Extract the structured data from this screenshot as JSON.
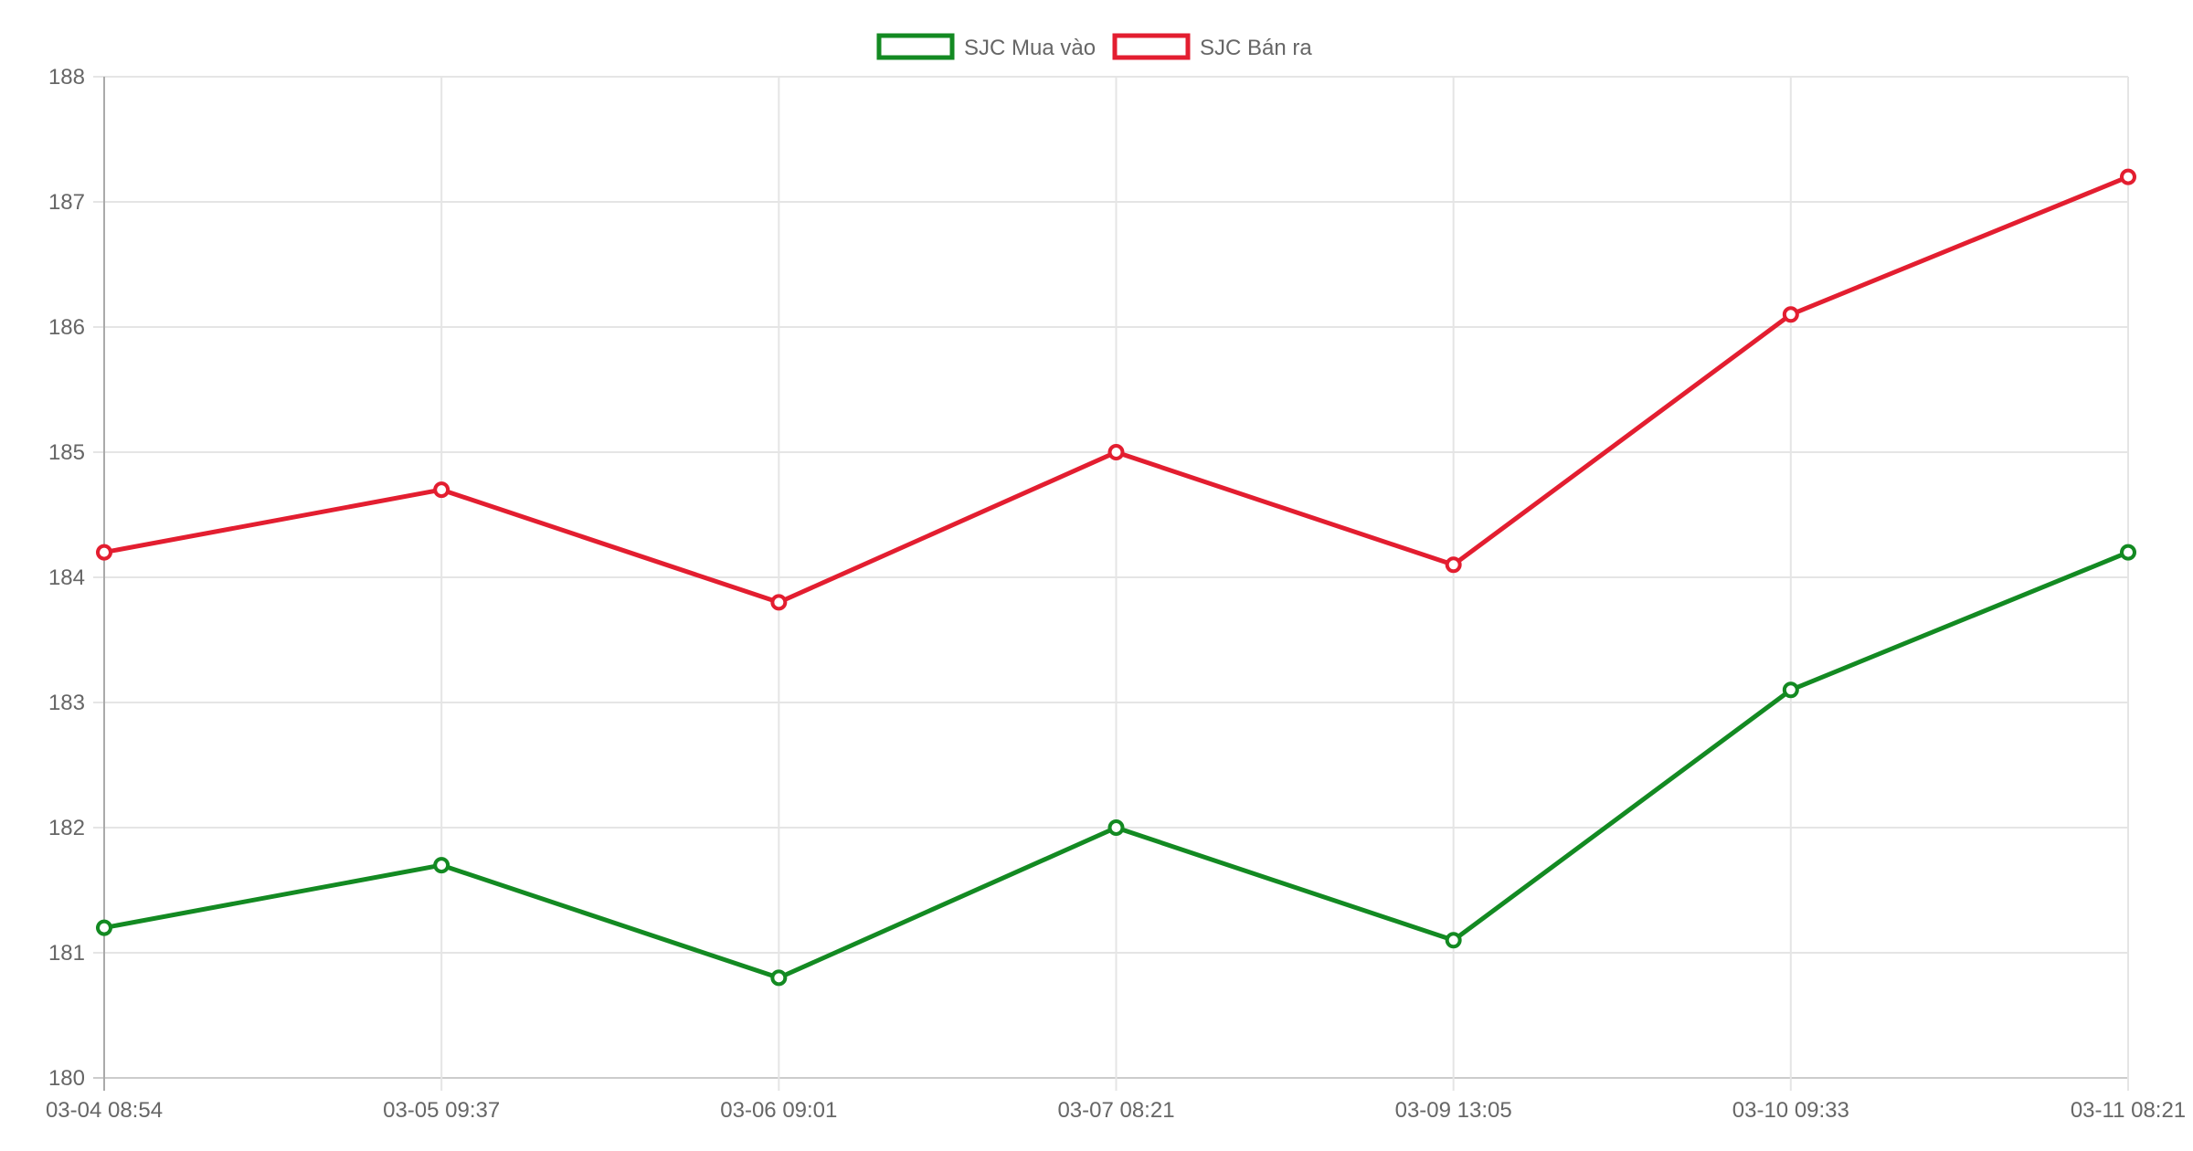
{
  "chart_data": {
    "type": "line",
    "title": "",
    "xlabel": "",
    "ylabel": "",
    "categories": [
      "03-04 08:54",
      "03-05 09:37",
      "03-06 09:01",
      "03-07 08:21",
      "03-09 13:05",
      "03-10 09:33",
      "03-11 08:21"
    ],
    "ylim": [
      180,
      188
    ],
    "yticks": [
      180,
      181,
      182,
      183,
      184,
      185,
      186,
      187,
      188
    ],
    "grid": true,
    "legend": "top-center",
    "series": [
      {
        "name": "SJC Mua vào",
        "color": "#138a22",
        "values": [
          181.2,
          181.7,
          180.8,
          182.0,
          181.1,
          183.1,
          184.2
        ]
      },
      {
        "name": "SJC Bán ra",
        "color": "#e31e30",
        "values": [
          184.2,
          184.7,
          183.8,
          185.0,
          184.1,
          186.1,
          187.2
        ]
      }
    ]
  }
}
